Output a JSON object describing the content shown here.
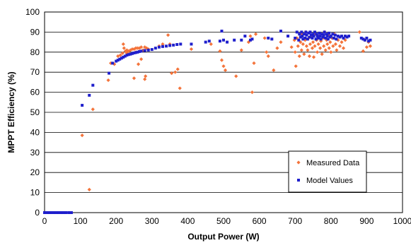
{
  "chart_data": {
    "type": "scatter",
    "title": "",
    "xlabel": "Output Power (W)",
    "ylabel": "MPPT Efficiency (%)",
    "xlim": [
      0,
      1000
    ],
    "ylim": [
      0,
      100
    ],
    "x_ticks": [
      "0",
      "100",
      "200",
      "300",
      "400",
      "500",
      "600",
      "700",
      "800",
      "900",
      "1000"
    ],
    "y_ticks": [
      "0",
      "10",
      "20",
      "30",
      "40",
      "50",
      "60",
      "70",
      "80",
      "90",
      "100"
    ],
    "grid": "horizontal",
    "legend_position": "lower-right",
    "series": [
      {
        "name": "Measured Data",
        "marker": "diamond",
        "color": "#F4743B",
        "points": [
          [
            105,
            38.5
          ],
          [
            125,
            11.5
          ],
          [
            135,
            51.5
          ],
          [
            178,
            66
          ],
          [
            185,
            74.5
          ],
          [
            195,
            74
          ],
          [
            205,
            78
          ],
          [
            212,
            78.5
          ],
          [
            218,
            79.5
          ],
          [
            222,
            82
          ],
          [
            226,
            80.5
          ],
          [
            230,
            81
          ],
          [
            235,
            80.5
          ],
          [
            240,
            81
          ],
          [
            245,
            81.5
          ],
          [
            250,
            81.5
          ],
          [
            255,
            82
          ],
          [
            260,
            82
          ],
          [
            265,
            82
          ],
          [
            270,
            82.5
          ],
          [
            275,
            81
          ],
          [
            280,
            82.5
          ],
          [
            285,
            82
          ],
          [
            290,
            81.5
          ],
          [
            220,
            84
          ],
          [
            230,
            79.5
          ],
          [
            255,
            80
          ],
          [
            262,
            74
          ],
          [
            270,
            76.5
          ],
          [
            250,
            67
          ],
          [
            280,
            66.5
          ],
          [
            282,
            68
          ],
          [
            320,
            83
          ],
          [
            330,
            84
          ],
          [
            345,
            88.5
          ],
          [
            350,
            84
          ],
          [
            355,
            69.5
          ],
          [
            365,
            70
          ],
          [
            372,
            71.5
          ],
          [
            378,
            62
          ],
          [
            410,
            81.5
          ],
          [
            465,
            84
          ],
          [
            490,
            80.5
          ],
          [
            495,
            76
          ],
          [
            500,
            73
          ],
          [
            505,
            71
          ],
          [
            535,
            68
          ],
          [
            550,
            81
          ],
          [
            570,
            85
          ],
          [
            575,
            88
          ],
          [
            580,
            60
          ],
          [
            585,
            74.5
          ],
          [
            590,
            89
          ],
          [
            615,
            87
          ],
          [
            620,
            80
          ],
          [
            625,
            78
          ],
          [
            640,
            71
          ],
          [
            650,
            82
          ],
          [
            660,
            85
          ],
          [
            690,
            82.5
          ],
          [
            698,
            86
          ],
          [
            700,
            80
          ],
          [
            702,
            73
          ],
          [
            705,
            87
          ],
          [
            708,
            83
          ],
          [
            712,
            78
          ],
          [
            715,
            85
          ],
          [
            718,
            81
          ],
          [
            720,
            89
          ],
          [
            722,
            84
          ],
          [
            725,
            79
          ],
          [
            728,
            86
          ],
          [
            730,
            90
          ],
          [
            732,
            83
          ],
          [
            735,
            81
          ],
          [
            738,
            87
          ],
          [
            740,
            78
          ],
          [
            742,
            84
          ],
          [
            745,
            88
          ],
          [
            748,
            82
          ],
          [
            750,
            85
          ],
          [
            752,
            77.5
          ],
          [
            755,
            83
          ],
          [
            758,
            89
          ],
          [
            760,
            86
          ],
          [
            762,
            80
          ],
          [
            765,
            84
          ],
          [
            768,
            88
          ],
          [
            770,
            82
          ],
          [
            772,
            85.5
          ],
          [
            775,
            79
          ],
          [
            778,
            87
          ],
          [
            780,
            83
          ],
          [
            782,
            90
          ],
          [
            785,
            81
          ],
          [
            788,
            86
          ],
          [
            790,
            84
          ],
          [
            792,
            88.5
          ],
          [
            795,
            82
          ],
          [
            798,
            85
          ],
          [
            800,
            80
          ],
          [
            803,
            87
          ],
          [
            806,
            83
          ],
          [
            810,
            89
          ],
          [
            813,
            84
          ],
          [
            816,
            81
          ],
          [
            820,
            86
          ],
          [
            825,
            83
          ],
          [
            830,
            85
          ],
          [
            835,
            82
          ],
          [
            840,
            86
          ],
          [
            880,
            90
          ],
          [
            890,
            80.5
          ],
          [
            895,
            86
          ],
          [
            900,
            82.5
          ],
          [
            905,
            85
          ],
          [
            910,
            83
          ]
        ]
      },
      {
        "name": "Model Values",
        "marker": "square",
        "color": "#1F1FCC",
        "points": [
          [
            0,
            0
          ],
          [
            5,
            0
          ],
          [
            10,
            0
          ],
          [
            15,
            0
          ],
          [
            20,
            0
          ],
          [
            25,
            0
          ],
          [
            30,
            0
          ],
          [
            35,
            0
          ],
          [
            40,
            0
          ],
          [
            45,
            0
          ],
          [
            50,
            0
          ],
          [
            55,
            0
          ],
          [
            60,
            0
          ],
          [
            68,
            0
          ],
          [
            75,
            0
          ],
          [
            105,
            53.5
          ],
          [
            125,
            58.5
          ],
          [
            135,
            63.5
          ],
          [
            180,
            69.5
          ],
          [
            190,
            74.5
          ],
          [
            200,
            75.5
          ],
          [
            205,
            76
          ],
          [
            210,
            76.5
          ],
          [
            215,
            77
          ],
          [
            220,
            77.5
          ],
          [
            225,
            78
          ],
          [
            230,
            78.5
          ],
          [
            235,
            78.8
          ],
          [
            240,
            79
          ],
          [
            245,
            79.3
          ],
          [
            250,
            79.6
          ],
          [
            255,
            79.8
          ],
          [
            260,
            80
          ],
          [
            265,
            80.3
          ],
          [
            270,
            80.5
          ],
          [
            280,
            80.8
          ],
          [
            290,
            81
          ],
          [
            300,
            81.3
          ],
          [
            310,
            82
          ],
          [
            320,
            82.5
          ],
          [
            330,
            82.8
          ],
          [
            340,
            83
          ],
          [
            350,
            83.3
          ],
          [
            360,
            83.5
          ],
          [
            370,
            83.8
          ],
          [
            380,
            84
          ],
          [
            410,
            84
          ],
          [
            450,
            85
          ],
          [
            460,
            85.5
          ],
          [
            490,
            85.5
          ],
          [
            495,
            90.5
          ],
          [
            500,
            86
          ],
          [
            510,
            85
          ],
          [
            530,
            86
          ],
          [
            550,
            86
          ],
          [
            560,
            88
          ],
          [
            575,
            86
          ],
          [
            580,
            86.5
          ],
          [
            625,
            87
          ],
          [
            635,
            86.5
          ],
          [
            660,
            90.5
          ],
          [
            680,
            88
          ],
          [
            700,
            87
          ],
          [
            705,
            90
          ],
          [
            710,
            86
          ],
          [
            712,
            89
          ],
          [
            715,
            87.5
          ],
          [
            718,
            90
          ],
          [
            720,
            88
          ],
          [
            722,
            86.5
          ],
          [
            725,
            89
          ],
          [
            728,
            87
          ],
          [
            730,
            90
          ],
          [
            732,
            88.5
          ],
          [
            735,
            86.5
          ],
          [
            738,
            89.5
          ],
          [
            740,
            87.5
          ],
          [
            742,
            90
          ],
          [
            745,
            88.5
          ],
          [
            748,
            87
          ],
          [
            750,
            89
          ],
          [
            752,
            88
          ],
          [
            755,
            90
          ],
          [
            758,
            86.5
          ],
          [
            760,
            89
          ],
          [
            762,
            88
          ],
          [
            765,
            87
          ],
          [
            768,
            89.5
          ],
          [
            770,
            88
          ],
          [
            772,
            86.5
          ],
          [
            775,
            89
          ],
          [
            778,
            87.5
          ],
          [
            780,
            88.5
          ],
          [
            782,
            90
          ],
          [
            785,
            87
          ],
          [
            788,
            89
          ],
          [
            790,
            88
          ],
          [
            792,
            86.5
          ],
          [
            795,
            89.5
          ],
          [
            798,
            87.5
          ],
          [
            800,
            88
          ],
          [
            805,
            89
          ],
          [
            808,
            87
          ],
          [
            812,
            88.5
          ],
          [
            815,
            86.5
          ],
          [
            820,
            88
          ],
          [
            825,
            87.5
          ],
          [
            830,
            88
          ],
          [
            835,
            87
          ],
          [
            840,
            88
          ],
          [
            845,
            87.5
          ],
          [
            850,
            88
          ],
          [
            885,
            87
          ],
          [
            890,
            86.5
          ],
          [
            895,
            86
          ],
          [
            900,
            87
          ],
          [
            905,
            85.5
          ],
          [
            910,
            86
          ]
        ]
      }
    ]
  }
}
